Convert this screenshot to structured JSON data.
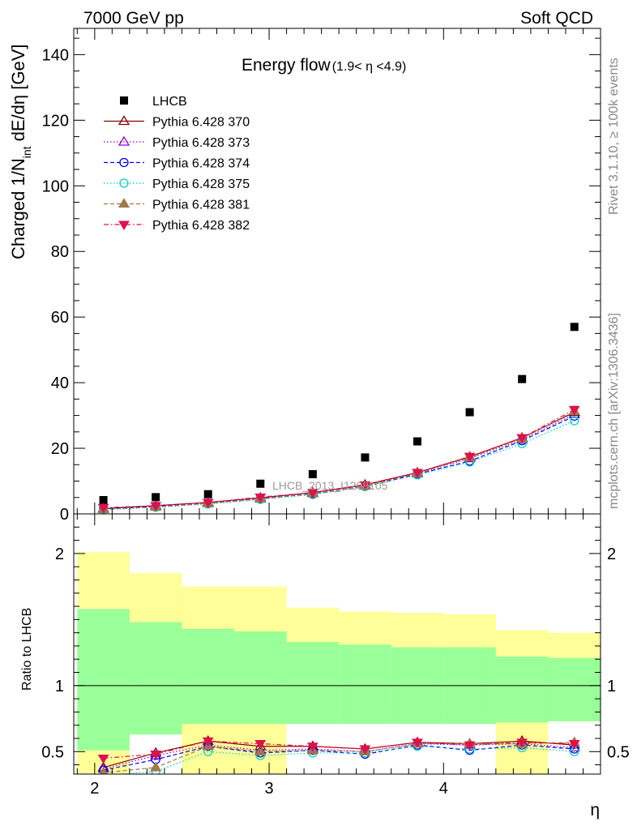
{
  "header": {
    "energy": "7000 GeV pp",
    "process": "Soft QCD"
  },
  "side_labels": {
    "rivet": "Rivet 3.1.10, ≥ 100k events",
    "mcplots": "mcplots.cern.ch [arXiv:1306.3436]"
  },
  "watermark": "LHCB_2013_I1208105",
  "main_title": "Energy flow",
  "main_title_range": "(1.9< η <4.9)",
  "main_ylabel": "Charged 1/N",
  "main_ylabel_sub": "int",
  "main_ylabel_tail": " dE/dη [GeV]",
  "ratio_ylabel": "Ratio to LHCB",
  "xlabel": "η",
  "chart_data": [
    {
      "type": "scatter",
      "panel": "main",
      "xlim": [
        1.88,
        4.9
      ],
      "ylim": [
        0,
        148
      ],
      "x_ticks": [
        2,
        3,
        4
      ],
      "y_ticks": [
        0,
        20,
        40,
        60,
        80,
        100,
        120,
        140
      ],
      "y_tick_labels": [
        "0",
        "20",
        "40",
        "60",
        "80",
        "100",
        "120",
        "140"
      ],
      "legend_position": "top-left",
      "x": [
        2.05,
        2.35,
        2.65,
        2.95,
        3.25,
        3.55,
        3.85,
        4.15,
        4.45,
        4.75
      ],
      "series": [
        {
          "name": "LHCB",
          "color": "#000000",
          "marker": "square",
          "line": "none",
          "values": [
            4.2,
            5.1,
            6.0,
            9.2,
            12.1,
            17.2,
            22.1,
            31.0,
            41.1,
            57.0
          ]
        },
        {
          "name": "Pythia 6.428 370",
          "color": "#8b0000",
          "marker": "open-triangle-up",
          "line": "solid",
          "values": [
            1.6,
            2.5,
            3.5,
            4.9,
            6.5,
            8.9,
            12.6,
            17.4,
            23.2,
            31.0
          ]
        },
        {
          "name": "Pythia 6.428 373",
          "color": "#9400d3",
          "marker": "open-triangle-up",
          "line": "dotted",
          "values": [
            1.5,
            2.4,
            3.3,
            4.7,
            6.3,
            8.6,
            12.3,
            16.9,
            22.6,
            30.4
          ]
        },
        {
          "name": "Pythia 6.428 374",
          "color": "#0000ff",
          "marker": "open-circle",
          "line": "dashed",
          "values": [
            1.5,
            2.3,
            3.2,
            4.6,
            6.1,
            8.4,
            12.1,
            16.1,
            22.3,
            29.8
          ]
        },
        {
          "name": "Pythia 6.428 375",
          "color": "#00d0c0",
          "marker": "open-circle",
          "line": "dotted",
          "values": [
            1.3,
            2.0,
            3.0,
            4.4,
            5.9,
            8.3,
            11.9,
            15.8,
            21.4,
            28.4
          ]
        },
        {
          "name": "Pythia 6.428 381",
          "color": "#a0784a",
          "marker": "filled-triangle-up",
          "line": "dashed",
          "values": [
            1.4,
            2.1,
            3.2,
            4.6,
            6.2,
            8.5,
            12.4,
            17.2,
            23.0,
            31.3
          ]
        },
        {
          "name": "Pythia 6.428 382",
          "color": "#e0104a",
          "marker": "filled-triangle-down",
          "line": "dashdot",
          "values": [
            1.9,
            2.5,
            3.5,
            5.1,
            6.5,
            8.8,
            12.6,
            17.5,
            23.2,
            31.8
          ]
        }
      ]
    },
    {
      "type": "scatter",
      "panel": "ratio",
      "xlim": [
        1.88,
        4.9
      ],
      "ylim": [
        0.33,
        2.3
      ],
      "x_ticks": [
        2,
        3,
        4
      ],
      "x_tick_labels": [
        "2",
        "3",
        "4"
      ],
      "y_ticks": [
        0.5,
        1,
        2
      ],
      "y_tick_labels": [
        "0.5",
        "1",
        "2"
      ],
      "reference_line": 1,
      "bands": {
        "edges": [
          1.9,
          2.2,
          2.5,
          2.8,
          3.1,
          3.4,
          3.7,
          4.0,
          4.3,
          4.6,
          4.9
        ],
        "outer": {
          "color": "#ffff99",
          "low": [
            0.33,
            0.63,
            0.33,
            0.33,
            0.71,
            0.79,
            0.81,
            0.81,
            0.82,
            0.87,
            0.88
          ],
          "high": [
            2.01,
            1.85,
            1.85,
            1.75,
            1.75,
            1.59,
            1.56,
            1.55,
            1.54,
            1.42,
            1.4
          ]
        },
        "inner": {
          "color": "#99ff99",
          "low": [
            0.51,
            0.63,
            0.71,
            0.71,
            0.71,
            0.71,
            0.71,
            0.71,
            0.71,
            0.72,
            0.73
          ],
          "high": [
            1.58,
            1.48,
            1.43,
            1.41,
            1.33,
            1.31,
            1.29,
            1.29,
            1.28,
            1.22,
            1.21
          ]
        },
        "outer_steps": [
          {
            "x0": 1.9,
            "x1": 2.2,
            "low": 0.33,
            "high": 2.01
          },
          {
            "x0": 2.2,
            "x1": 2.5,
            "low": 0.63,
            "high": 1.85
          },
          {
            "x0": 2.5,
            "x1": 2.8,
            "low": 0.33,
            "high": 1.75
          },
          {
            "x0": 2.8,
            "x1": 3.1,
            "low": 0.33,
            "high": 1.75
          },
          {
            "x0": 3.1,
            "x1": 3.4,
            "low": 0.79,
            "high": 1.59
          },
          {
            "x0": 3.4,
            "x1": 3.7,
            "low": 0.81,
            "high": 1.56
          },
          {
            "x0": 3.7,
            "x1": 4.0,
            "low": 0.82,
            "high": 1.55
          },
          {
            "x0": 4.0,
            "x1": 4.3,
            "low": 0.82,
            "high": 1.54
          },
          {
            "x0": 4.3,
            "x1": 4.6,
            "low": 0.33,
            "high": 1.42
          },
          {
            "x0": 4.6,
            "x1": 4.9,
            "low": 0.73,
            "high": 1.4
          }
        ],
        "inner_steps": [
          {
            "x0": 1.9,
            "x1": 2.2,
            "low": 0.51,
            "high": 1.58
          },
          {
            "x0": 2.2,
            "x1": 2.5,
            "low": 0.63,
            "high": 1.48
          },
          {
            "x0": 2.5,
            "x1": 2.8,
            "low": 0.71,
            "high": 1.43
          },
          {
            "x0": 2.8,
            "x1": 3.1,
            "low": 0.71,
            "high": 1.41
          },
          {
            "x0": 3.1,
            "x1": 3.4,
            "low": 0.71,
            "high": 1.33
          },
          {
            "x0": 3.4,
            "x1": 3.7,
            "low": 0.71,
            "high": 1.31
          },
          {
            "x0": 3.7,
            "x1": 4.0,
            "low": 0.71,
            "high": 1.29
          },
          {
            "x0": 4.0,
            "x1": 4.3,
            "low": 0.71,
            "high": 1.29
          },
          {
            "x0": 4.3,
            "x1": 4.6,
            "low": 0.72,
            "high": 1.22
          },
          {
            "x0": 4.6,
            "x1": 4.9,
            "low": 0.73,
            "high": 1.21
          }
        ]
      },
      "x": [
        2.05,
        2.35,
        2.65,
        2.95,
        3.25,
        3.55,
        3.85,
        4.15,
        4.45,
        4.75
      ],
      "series": [
        {
          "name": "Pythia 6.428 370",
          "color": "#8b0000",
          "marker": "open-triangle-up",
          "line": "solid",
          "values": [
            0.38,
            0.49,
            0.58,
            0.54,
            0.54,
            0.52,
            0.57,
            0.56,
            0.58,
            0.55
          ]
        },
        {
          "name": "Pythia 6.428 373",
          "color": "#9400d3",
          "marker": "open-triangle-up",
          "line": "dotted",
          "values": [
            0.37,
            0.47,
            0.55,
            0.51,
            0.52,
            0.5,
            0.56,
            0.55,
            0.56,
            0.53
          ]
        },
        {
          "name": "Pythia 6.428 374",
          "color": "#0000ff",
          "marker": "open-circle",
          "line": "dashed",
          "values": [
            0.36,
            0.44,
            0.54,
            0.49,
            0.51,
            0.48,
            0.55,
            0.51,
            0.55,
            0.52
          ]
        },
        {
          "name": "Pythia 6.428 375",
          "color": "#00d0c0",
          "marker": "open-circle",
          "line": "dotted",
          "values": [
            0.32,
            0.35,
            0.5,
            0.47,
            0.49,
            0.49,
            0.54,
            0.52,
            0.53,
            0.5
          ]
        },
        {
          "name": "Pythia 6.428 381",
          "color": "#a0784a",
          "marker": "filled-triangle-up",
          "line": "dashed",
          "values": [
            0.34,
            0.38,
            0.54,
            0.5,
            0.51,
            0.5,
            0.56,
            0.56,
            0.56,
            0.57
          ]
        },
        {
          "name": "Pythia 6.428 382",
          "color": "#e0104a",
          "marker": "filled-triangle-down",
          "line": "dashdot",
          "values": [
            0.45,
            0.48,
            0.58,
            0.56,
            0.54,
            0.52,
            0.57,
            0.55,
            0.57,
            0.56
          ]
        }
      ]
    }
  ]
}
